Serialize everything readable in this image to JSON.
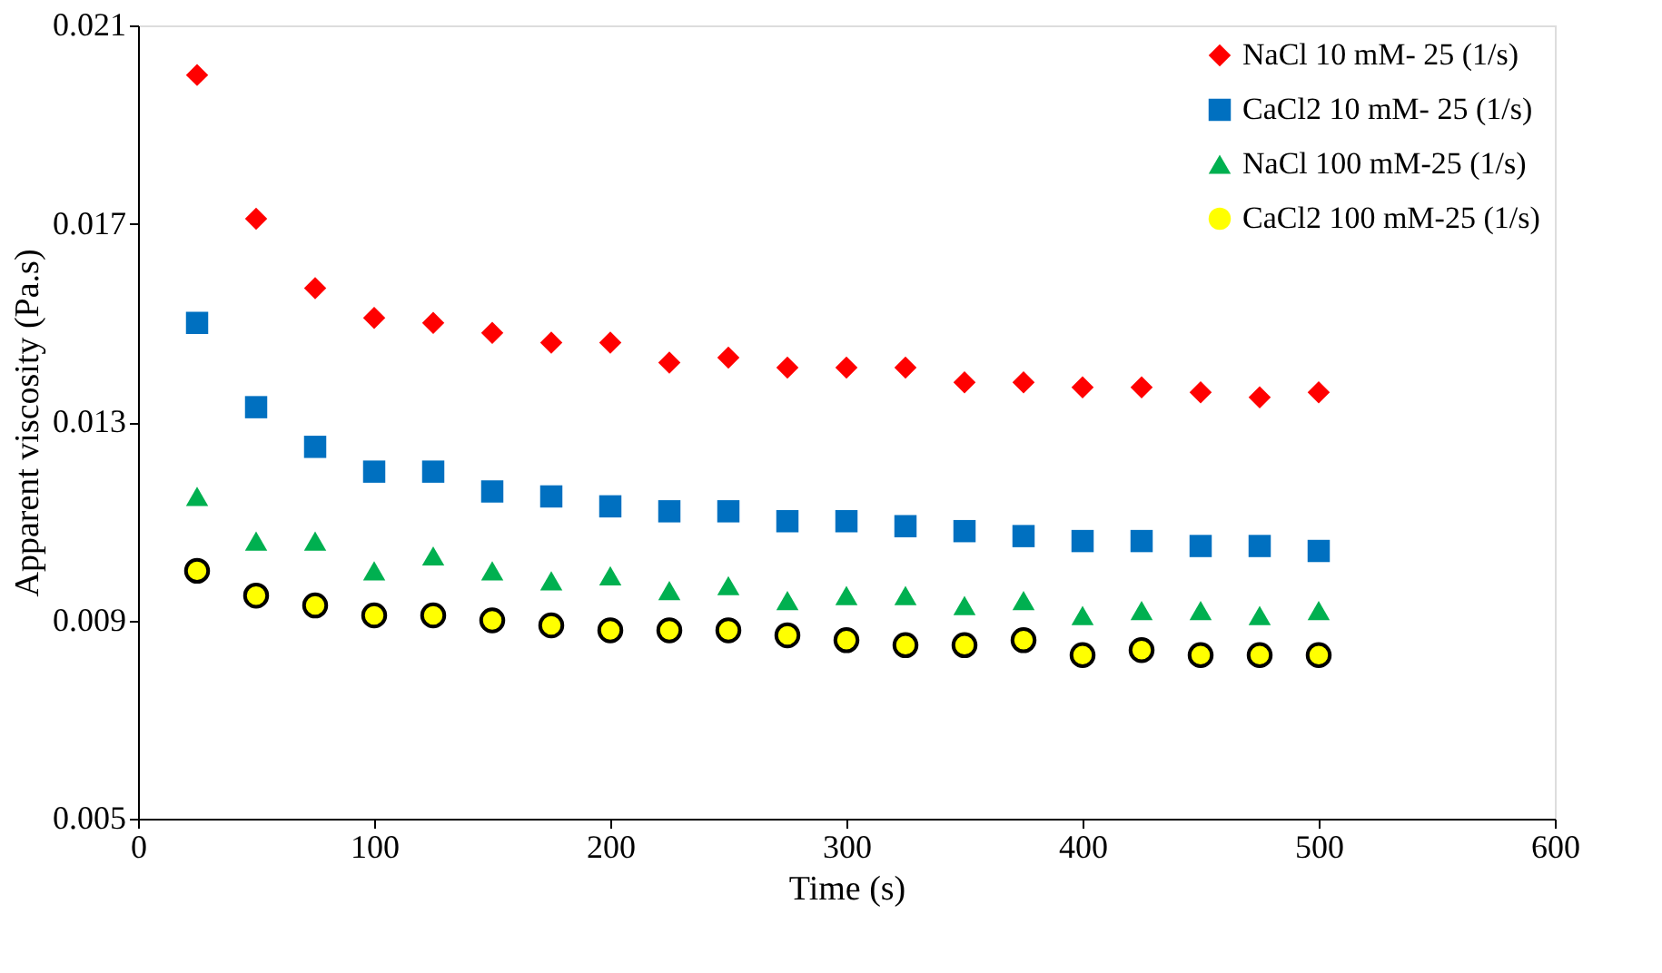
{
  "chart_data": {
    "type": "scatter",
    "xlabel": "Time (s)",
    "ylabel": "Apparent viscosity (Pa.s)",
    "x": [
      25,
      50,
      75,
      100,
      125,
      150,
      175,
      200,
      225,
      250,
      275,
      300,
      325,
      350,
      375,
      400,
      425,
      450,
      475,
      500
    ],
    "xlim": [
      0,
      600
    ],
    "xticks": [
      0,
      100,
      200,
      300,
      400,
      500,
      600
    ],
    "ylim": [
      0.005,
      0.021
    ],
    "yticks": [
      0.005,
      0.009,
      0.013,
      0.017,
      0.021
    ],
    "grid": false,
    "legend": "top right",
    "series": [
      {
        "name": "NaCl 10 mM- 25 (1/s)",
        "color": "#ff0000",
        "marker": "diamond",
        "values": [
          0.02,
          0.0171,
          0.0157,
          0.0151,
          0.015,
          0.0148,
          0.0146,
          0.0146,
          0.0142,
          0.0143,
          0.0141,
          0.0141,
          0.0141,
          0.0138,
          0.0138,
          0.0137,
          0.0137,
          0.0136,
          0.0135,
          0.0136
        ]
      },
      {
        "name": "CaCl2 10 mM- 25 (1/s)",
        "color": "#0070c0",
        "marker": "square",
        "values": [
          0.015,
          0.0133,
          0.0125,
          0.012,
          0.012,
          0.0116,
          0.0115,
          0.0113,
          0.0112,
          0.0112,
          0.011,
          0.011,
          0.0109,
          0.0108,
          0.0107,
          0.0106,
          0.0106,
          0.0105,
          0.0105,
          0.0104
        ]
      },
      {
        "name": "NaCl 100 mM-25 (1/s)",
        "color": "#00b050",
        "marker": "triangle",
        "values": [
          0.0115,
          0.0106,
          0.0106,
          0.01,
          0.0103,
          0.01,
          0.0098,
          0.0099,
          0.0096,
          0.0097,
          0.0094,
          0.0095,
          0.0095,
          0.0093,
          0.0094,
          0.0091,
          0.0092,
          0.0092,
          0.0091,
          0.0092
        ]
      },
      {
        "name": "CaCl2 100 mM-25 (1/s)",
        "color": "#ffff00",
        "marker": "circle",
        "values": [
          0.01,
          0.0095,
          0.0093,
          0.0091,
          0.0091,
          0.009,
          0.0089,
          0.0088,
          0.0088,
          0.0088,
          0.0087,
          0.0086,
          0.0085,
          0.0085,
          0.0086,
          0.0083,
          0.0084,
          0.0083,
          0.0083,
          0.0083
        ]
      }
    ]
  }
}
